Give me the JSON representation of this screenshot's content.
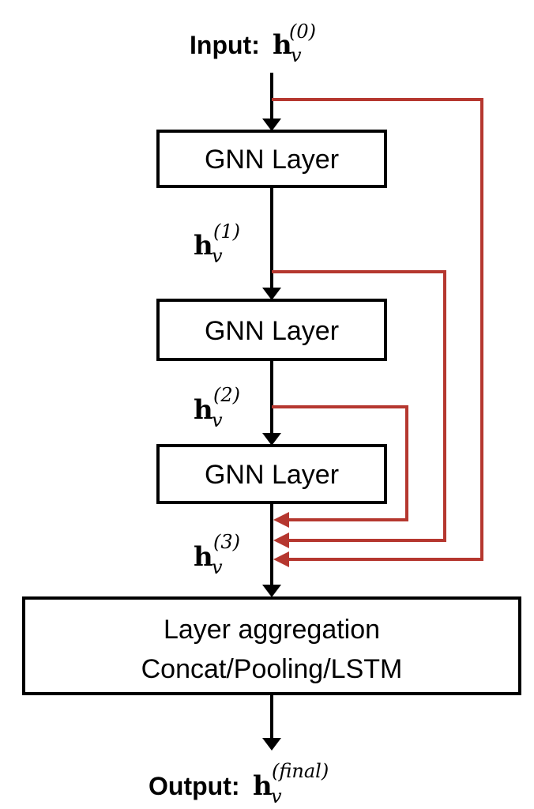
{
  "input": {
    "prefix": "Input:",
    "symbol": "h",
    "subscript": "v",
    "superscript": "(0)"
  },
  "layers": [
    {
      "label": "GNN Layer"
    },
    {
      "label": "GNN Layer"
    },
    {
      "label": "GNN Layer"
    }
  ],
  "hidden": [
    {
      "symbol": "h",
      "subscript": "v",
      "superscript": "(1)"
    },
    {
      "symbol": "h",
      "subscript": "v",
      "superscript": "(2)"
    },
    {
      "symbol": "h",
      "subscript": "v",
      "superscript": "(3)"
    }
  ],
  "aggregation": {
    "line1": "Layer aggregation",
    "line2": "Concat/Pooling/LSTM"
  },
  "output": {
    "prefix": "Output:",
    "symbol": "h",
    "subscript": "v",
    "superscript": "(final)"
  },
  "colors": {
    "skip": "#b5372f",
    "main": "#000000"
  }
}
